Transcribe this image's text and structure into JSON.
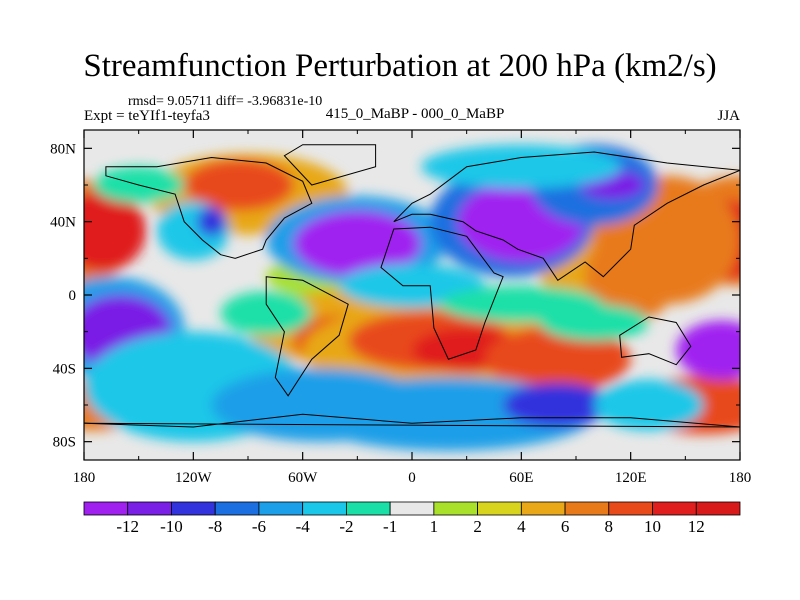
{
  "chart_data": {
    "type": "heatmap",
    "title": "Streamfunction Perturbation at 200 hPa (km2/s)",
    "stats_text": "rmsd= 9.05711 diff= -3.96831e-10",
    "left_label": "Expt = teYIf1-teyfa3",
    "center_label": "415_0_MaBP - 000_0_MaBP",
    "right_label": "JJA",
    "x_ticks": [
      "180",
      "120W",
      "60W",
      "0",
      "60E",
      "120E",
      "180"
    ],
    "y_ticks": [
      "80N",
      "40N",
      "0",
      "40S",
      "80S"
    ],
    "xlim": [
      -180,
      180
    ],
    "ylim": [
      -90,
      90
    ],
    "colorbar": {
      "labels": [
        "-12",
        "-10",
        "-8",
        "-6",
        "-4",
        "-2",
        "-1",
        "1",
        "2",
        "4",
        "6",
        "8",
        "10",
        "12"
      ],
      "colors": [
        "#a020f0",
        "#7a1fe6",
        "#3333dd",
        "#1b6fe0",
        "#1a9fe8",
        "#1ac7e8",
        "#1ae0a8",
        "#e8e8e8",
        "#a8e02a",
        "#d8d41e",
        "#e8a818",
        "#e87a1a",
        "#e84a1a",
        "#e01e1e",
        "#d81a1a"
      ]
    }
  }
}
